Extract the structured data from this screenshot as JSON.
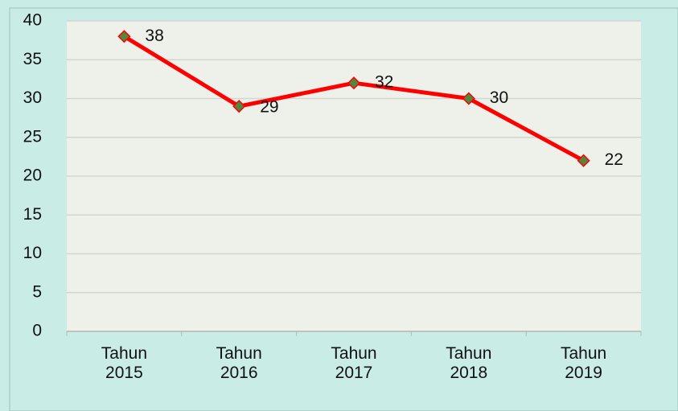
{
  "chart_data": {
    "type": "line",
    "categories": [
      "Tahun 2015",
      "Tahun 2016",
      "Tahun 2017",
      "Tahun 2018",
      "Tahun 2019"
    ],
    "values": [
      38,
      29,
      32,
      30,
      22
    ],
    "color": "#ff0000",
    "marker_color": "#4f8a3c",
    "ylim": [
      0,
      40
    ],
    "yticks": [
      0,
      5,
      10,
      15,
      20,
      25,
      30,
      35,
      40
    ],
    "grid": true
  }
}
